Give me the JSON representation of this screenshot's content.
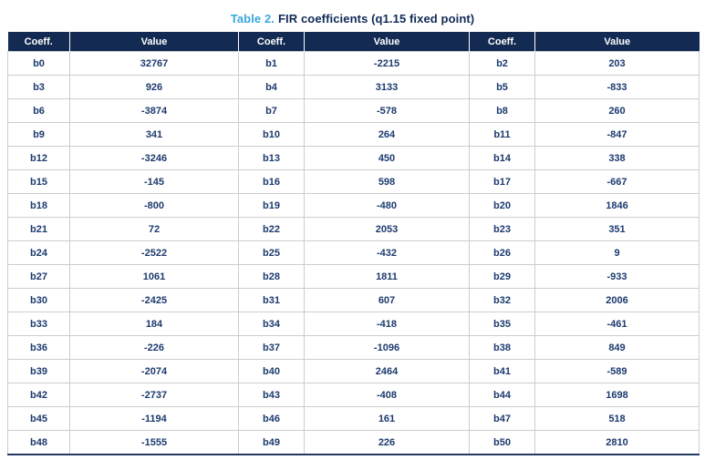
{
  "title": {
    "label": "Table 2.",
    "text": "FIR coefficients (q1.15 fixed point)"
  },
  "table": {
    "headers": [
      "Coeff.",
      "Value",
      "Coeff.",
      "Value",
      "Coeff.",
      "Value"
    ],
    "rows": [
      [
        "b0",
        "32767",
        "b1",
        "-2215",
        "b2",
        "203"
      ],
      [
        "b3",
        "926",
        "b4",
        "3133",
        "b5",
        "-833"
      ],
      [
        "b6",
        "-3874",
        "b7",
        "-578",
        "b8",
        "260"
      ],
      [
        "b9",
        "341",
        "b10",
        "264",
        "b11",
        "-847"
      ],
      [
        "b12",
        "-3246",
        "b13",
        "450",
        "b14",
        "338"
      ],
      [
        "b15",
        "-145",
        "b16",
        "598",
        "b17",
        "-667"
      ],
      [
        "b18",
        "-800",
        "b19",
        "-480",
        "b20",
        "1846"
      ],
      [
        "b21",
        "72",
        "b22",
        "2053",
        "b23",
        "351"
      ],
      [
        "b24",
        "-2522",
        "b25",
        "-432",
        "b26",
        "9"
      ],
      [
        "b27",
        "1061",
        "b28",
        "1811",
        "b29",
        "-933"
      ],
      [
        "b30",
        "-2425",
        "b31",
        "607",
        "b32",
        "2006"
      ],
      [
        "b33",
        "184",
        "b34",
        "-418",
        "b35",
        "-461"
      ],
      [
        "b36",
        "-226",
        "b37",
        "-1096",
        "b38",
        "849"
      ],
      [
        "b39",
        "-2074",
        "b40",
        "2464",
        "b41",
        "-589"
      ],
      [
        "b42",
        "-2737",
        "b43",
        "-408",
        "b44",
        "1698"
      ],
      [
        "b45",
        "-1194",
        "b46",
        "161",
        "b47",
        "518"
      ],
      [
        "b48",
        "-1555",
        "b49",
        "226",
        "b50",
        "2810"
      ]
    ]
  },
  "colors": {
    "header_background": "#132a52",
    "header_text": "#ffffff",
    "cell_text": "#1c3a6e",
    "title_accent": "#39a8dc",
    "title_text": "#0f2a56",
    "grid_line": "#c9cdd3"
  }
}
